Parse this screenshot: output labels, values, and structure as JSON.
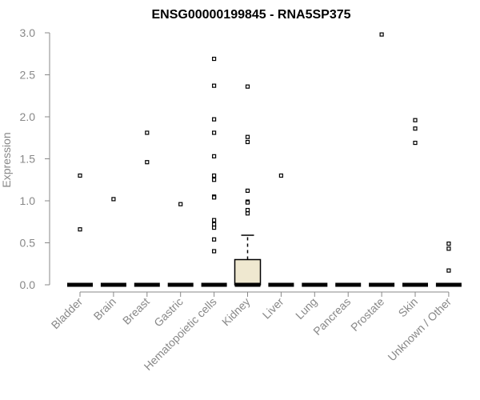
{
  "chart_data": {
    "type": "boxplot",
    "title": "ENSG00000199845 - RNA5SP375",
    "xlabel": "",
    "ylabel": "Expression",
    "ylim": [
      0,
      3.0
    ],
    "yticks": [
      "0.0",
      "0.5",
      "1.0",
      "1.5",
      "2.0",
      "2.5",
      "3.0"
    ],
    "categories": [
      "Bladder",
      "Brain",
      "Breast",
      "Gastric",
      "Hematopoietic cells",
      "Kidney",
      "Liver",
      "Lung",
      "Pancreas",
      "Prostate",
      "Skin",
      "Unknown / Other"
    ],
    "boxes": [
      {
        "q1": 0,
        "median": 0,
        "q3": 0,
        "whisker_low": 0,
        "whisker_high": 0,
        "outliers": [
          1.3,
          0.66
        ]
      },
      {
        "q1": 0,
        "median": 0,
        "q3": 0,
        "whisker_low": 0,
        "whisker_high": 0,
        "outliers": [
          1.02
        ]
      },
      {
        "q1": 0,
        "median": 0,
        "q3": 0,
        "whisker_low": 0,
        "whisker_high": 0,
        "outliers": [
          1.81,
          1.46
        ]
      },
      {
        "q1": 0,
        "median": 0,
        "q3": 0,
        "whisker_low": 0,
        "whisker_high": 0,
        "outliers": [
          0.96
        ]
      },
      {
        "q1": 0,
        "median": 0,
        "q3": 0,
        "whisker_low": 0,
        "whisker_high": 0,
        "outliers": [
          2.69,
          2.37,
          1.97,
          1.81,
          1.53,
          1.3,
          1.25,
          1.05,
          1.04,
          0.77,
          0.72,
          0.68,
          0.54,
          0.4
        ]
      },
      {
        "q1": 0,
        "median": 0,
        "q3": 0.3,
        "whisker_low": 0,
        "whisker_high": 0.59,
        "outliers": [
          2.36,
          1.76,
          1.7,
          1.12,
          0.99,
          0.98,
          0.89,
          0.85
        ]
      },
      {
        "q1": 0,
        "median": 0,
        "q3": 0,
        "whisker_low": 0,
        "whisker_high": 0,
        "outliers": [
          1.3
        ]
      },
      {
        "q1": 0,
        "median": 0,
        "q3": 0,
        "whisker_low": 0,
        "whisker_high": 0,
        "outliers": []
      },
      {
        "q1": 0,
        "median": 0,
        "q3": 0,
        "whisker_low": 0,
        "whisker_high": 0,
        "outliers": []
      },
      {
        "q1": 0,
        "median": 0,
        "q3": 0,
        "whisker_low": 0,
        "whisker_high": 0,
        "outliers": [
          2.98
        ]
      },
      {
        "q1": 0,
        "median": 0,
        "q3": 0,
        "whisker_low": 0,
        "whisker_high": 0,
        "outliers": [
          1.96,
          1.86,
          1.69
        ]
      },
      {
        "q1": 0,
        "median": 0,
        "q3": 0,
        "whisker_low": 0,
        "whisker_high": 0,
        "outliers": [
          0.49,
          0.43,
          0.17
        ]
      }
    ],
    "box_fill": "#efe8d0",
    "axis_color": "#888888"
  }
}
